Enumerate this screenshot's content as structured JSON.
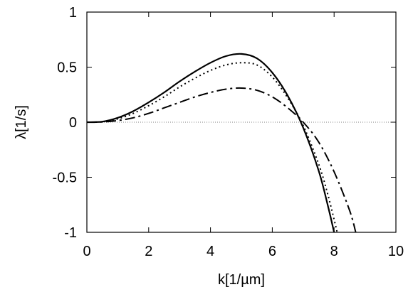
{
  "chart_data": {
    "type": "line",
    "title": "",
    "xlabel": "k[1/µm]",
    "ylabel": "λ[1/s]",
    "xlim": [
      0,
      10
    ],
    "ylim": [
      -1,
      1
    ],
    "x_ticks": [
      0,
      2,
      4,
      6,
      8,
      10
    ],
    "y_ticks": [
      -1,
      -0.5,
      0,
      0.5,
      1
    ],
    "x_tick_labels": [
      "0",
      "2",
      "4",
      "6",
      "8",
      "10"
    ],
    "y_tick_labels": [
      "-1",
      "-0.5",
      "0",
      "0.5",
      "1"
    ],
    "grid": false,
    "zero_line": true,
    "series": [
      {
        "style": "solid",
        "x": [
          0,
          0.5,
          1,
          1.5,
          2,
          2.5,
          3,
          3.5,
          4,
          4.5,
          5,
          5.5,
          6,
          6.5,
          7,
          7.5,
          7.8,
          8.0
        ],
        "y": [
          0,
          0.005,
          0.04,
          0.1,
          0.18,
          0.27,
          0.37,
          0.46,
          0.54,
          0.6,
          0.62,
          0.58,
          0.45,
          0.24,
          -0.05,
          -0.44,
          -0.76,
          -1.0
        ]
      },
      {
        "style": "dotted",
        "x": [
          0,
          0.5,
          1,
          1.5,
          2,
          2.5,
          3,
          3.5,
          4,
          4.5,
          5,
          5.5,
          6,
          6.5,
          7,
          7.5,
          7.8,
          8.1
        ],
        "y": [
          0,
          0.004,
          0.03,
          0.08,
          0.15,
          0.23,
          0.32,
          0.4,
          0.47,
          0.52,
          0.54,
          0.52,
          0.41,
          0.22,
          -0.03,
          -0.38,
          -0.66,
          -1.0
        ]
      },
      {
        "style": "dash-dot",
        "x": [
          0,
          0.5,
          1,
          1.5,
          2,
          2.5,
          3,
          3.5,
          4,
          4.5,
          5,
          5.5,
          6,
          6.5,
          7,
          7.5,
          8,
          8.5,
          8.7
        ],
        "y": [
          0,
          0.002,
          0.015,
          0.04,
          0.08,
          0.13,
          0.18,
          0.23,
          0.27,
          0.3,
          0.31,
          0.29,
          0.23,
          0.13,
          0.0,
          -0.18,
          -0.45,
          -0.8,
          -1.0
        ]
      }
    ]
  },
  "colors": {
    "line": "#000000",
    "zero_line": "#555555",
    "background": "#ffffff"
  }
}
